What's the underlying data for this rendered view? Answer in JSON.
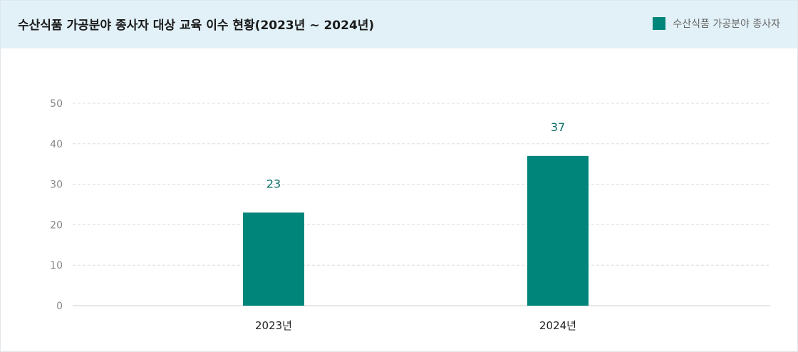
{
  "header": {
    "title": "수산식품 가공분야 종사자 대상 교육 이수 현황(2023년 ~ 2024년)"
  },
  "legend": {
    "label": "수산식품 가공분야 종사자"
  },
  "colors": {
    "bar": "#00857a",
    "header_bg": "#e2f1f8",
    "grid": "#dddddd",
    "data_label": "#0a6f69"
  },
  "chart_data": {
    "type": "bar",
    "title": "수산식품 가공분야 종사자 대상 교육 이수 현황(2023년 ~ 2024년)",
    "categories": [
      "2023년",
      "2024년"
    ],
    "series": [
      {
        "name": "수산식품 가공분야 종사자",
        "values": [
          23,
          37
        ]
      }
    ],
    "data_labels": [
      "23",
      "37"
    ],
    "ylim": [
      0,
      50
    ],
    "yticks": [
      0,
      10,
      20,
      30,
      40,
      50
    ],
    "grid": true,
    "legend_position": "top-right"
  }
}
